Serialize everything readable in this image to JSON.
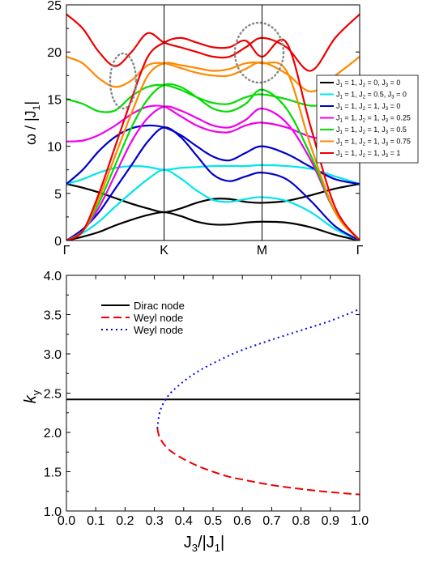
{
  "chart_data": [
    {
      "type": "line",
      "ylabel": "ω / |J1|",
      "ylabel_parts": {
        "main": "ω / |J",
        "sub": "1",
        "end": "|"
      },
      "ylim": [
        0,
        25
      ],
      "yticks": [
        "0",
        "5",
        "10",
        "15",
        "20",
        "25"
      ],
      "xticks": [
        "Γ",
        "K",
        "M",
        "Γ"
      ],
      "grid": false,
      "legend_position": "right",
      "series": [
        {
          "name": "J1 = 1, J2 = 0, J3 = 0",
          "label_parts": [
            "J",
            "1",
            " = 1, J",
            "2",
            " = 0, J",
            "3",
            " = 0"
          ],
          "color": "#000000",
          "bands": [
            [
              6.0,
              5.6,
              5.1,
              4.5,
              3.9,
              3.4,
              3.0,
              3.4,
              4.0,
              4.4,
              4.4,
              4.1,
              4.0,
              4.2,
              4.8,
              5.5,
              6.0
            ],
            [
              0.0,
              0.4,
              0.9,
              1.6,
              2.2,
              2.7,
              3.0,
              2.6,
              2.0,
              1.7,
              1.7,
              1.9,
              2.0,
              1.9,
              1.4,
              0.6,
              0.0
            ]
          ]
        },
        {
          "name": "J1 = 1, J2 = 0.5, J3 = 0",
          "label_parts": [
            "J",
            "1",
            " = 1, J",
            "2",
            " = 0.5, J",
            "3",
            " = 0"
          ],
          "color": "#00e5ee",
          "bands": [
            [
              6.0,
              6.5,
              7.2,
              7.7,
              7.9,
              7.8,
              7.5,
              7.7,
              7.8,
              7.9,
              7.9,
              7.9,
              8.0,
              7.9,
              7.6,
              6.8,
              6.0
            ],
            [
              0.0,
              0.8,
              2.0,
              3.6,
              5.1,
              6.5,
              7.5,
              6.6,
              5.3,
              4.3,
              4.1,
              4.4,
              4.6,
              4.2,
              3.0,
              1.2,
              0.0
            ]
          ]
        },
        {
          "name": "J1 = 1, J2 = 1, J3 = 0",
          "label_parts": [
            "J",
            "1",
            " = 1, J",
            "2",
            " = 1, J",
            "3",
            " = 0"
          ],
          "color": "#0000cc",
          "bands": [
            [
              6.0,
              7.5,
              9.5,
              11.0,
              11.9,
              12.2,
              12.0,
              11.2,
              10.0,
              8.9,
              8.5,
              9.3,
              10.0,
              9.2,
              7.8,
              6.5,
              6.0
            ],
            [
              0.0,
              1.2,
              3.0,
              5.5,
              8.0,
              10.5,
              12.0,
              11.0,
              9.0,
              7.0,
              6.3,
              6.8,
              7.2,
              6.5,
              4.2,
              1.5,
              0.0
            ]
          ]
        },
        {
          "name": "J1 = 1, J2 = 1, J3 = 0.25",
          "label_parts": [
            "J",
            "1",
            " = 1, J",
            "2",
            " = 1, J",
            "3",
            " = 0.25"
          ],
          "color": "#ee00ee",
          "bands": [
            [
              10.5,
              10.6,
              11.2,
              12.2,
              13.4,
              14.2,
              14.2,
              13.2,
              12.2,
              11.6,
              11.5,
              12.2,
              12.5,
              12.0,
              11.0,
              10.6,
              10.5
            ],
            [
              0.0,
              1.0,
              3.5,
              7.0,
              10.5,
              13.0,
              14.2,
              13.8,
              13.0,
              12.2,
              12.0,
              12.8,
              14.0,
              12.5,
              8.5,
              3.0,
              0.0
            ]
          ]
        },
        {
          "name": "J1 = 1, J2 = 1, J3 = 0.5",
          "label_parts": [
            "J",
            "1",
            " = 1, J",
            "2",
            " = 1, J",
            "3",
            " = 0.5"
          ],
          "color": "#00dd00",
          "bands": [
            [
              15.0,
              14.5,
              13.7,
              13.8,
              15.3,
              16.3,
              16.5,
              16.0,
              15.2,
              14.6,
              14.5,
              15.2,
              15.5,
              15.0,
              14.3,
              14.6,
              15.0
            ],
            [
              0.0,
              1.0,
              4.0,
              8.0,
              12.0,
              15.0,
              16.5,
              16.3,
              15.2,
              14.0,
              13.7,
              14.5,
              16.0,
              14.0,
              9.0,
              3.0,
              0.0
            ]
          ]
        },
        {
          "name": "J1 = 1, J2 = 1, J3 = 0.75",
          "label_parts": [
            "J",
            "1",
            " = 1, J",
            "2",
            " = 1, J",
            "3",
            " = 0.75"
          ],
          "color": "#ff8800",
          "bands": [
            [
              19.5,
              18.8,
              17.2,
              16.3,
              17.0,
              18.6,
              18.8,
              18.3,
              17.8,
              17.5,
              17.5,
              18.2,
              18.9,
              17.7,
              15.8,
              17.5,
              19.5
            ],
            [
              0.0,
              1.0,
              4.5,
              9.0,
              13.5,
              17.5,
              18.8,
              18.6,
              18.3,
              18.0,
              18.2,
              18.8,
              18.8,
              18.0,
              10.0,
              3.0,
              0.0
            ]
          ]
        },
        {
          "name": "J1 = 1, J2 = 1, J3 = 1",
          "label_parts": [
            "J",
            "1",
            " = 1, J",
            "2",
            " = 1, J",
            "3",
            " = 1"
          ],
          "color": "#ee0000",
          "bands": [
            [
              24.0,
              22.5,
              20.0,
              18.5,
              20.0,
              22.0,
              21.0,
              20.5,
              20.0,
              19.5,
              19.5,
              20.5,
              21.5,
              20.5,
              18.0,
              21.5,
              24.0
            ],
            [
              0.0,
              1.0,
              5.0,
              10.0,
              15.0,
              19.5,
              21.0,
              21.5,
              21.0,
              20.5,
              20.5,
              21.2,
              19.5,
              21.0,
              12.0,
              3.5,
              0.0
            ]
          ]
        }
      ]
    },
    {
      "type": "line",
      "xlabel": "J3/|J1|",
      "xlabel_parts": [
        "J",
        "3",
        "/|J",
        "1",
        "|"
      ],
      "ylabel": "ky",
      "ylabel_parts": {
        "main": "k",
        "sub": "y"
      },
      "xlim": [
        0.0,
        1.0
      ],
      "ylim": [
        1.0,
        4.0
      ],
      "xticks": [
        "0.0",
        "0.1",
        "0.2",
        "0.3",
        "0.4",
        "0.5",
        "0.6",
        "0.7",
        "0.8",
        "0.9",
        "1.0"
      ],
      "yticks": [
        "1.0",
        "1.5",
        "2.0",
        "2.5",
        "3.0",
        "3.5",
        "4.0"
      ],
      "grid": false,
      "legend_position": "top-left",
      "series": [
        {
          "name": "Dirac node",
          "color": "#000000",
          "style": "solid",
          "x": [
            0.0,
            1.0
          ],
          "y": [
            2.42,
            2.42
          ]
        },
        {
          "name": "Weyl node",
          "color": "#ee0000",
          "style": "dashed",
          "x": [
            0.31,
            0.32,
            0.35,
            0.4,
            0.45,
            0.5,
            0.55,
            0.6,
            0.7,
            0.8,
            0.9,
            1.0
          ],
          "y": [
            2.05,
            1.92,
            1.78,
            1.66,
            1.57,
            1.5,
            1.44,
            1.4,
            1.33,
            1.28,
            1.24,
            1.21
          ]
        },
        {
          "name": "Weyl node",
          "color": "#0000ee",
          "style": "dotted",
          "x": [
            0.31,
            0.32,
            0.35,
            0.4,
            0.45,
            0.5,
            0.55,
            0.6,
            0.7,
            0.8,
            0.9,
            1.0
          ],
          "y": [
            2.05,
            2.28,
            2.48,
            2.65,
            2.78,
            2.88,
            2.97,
            3.05,
            3.18,
            3.3,
            3.42,
            3.57
          ]
        }
      ]
    }
  ]
}
